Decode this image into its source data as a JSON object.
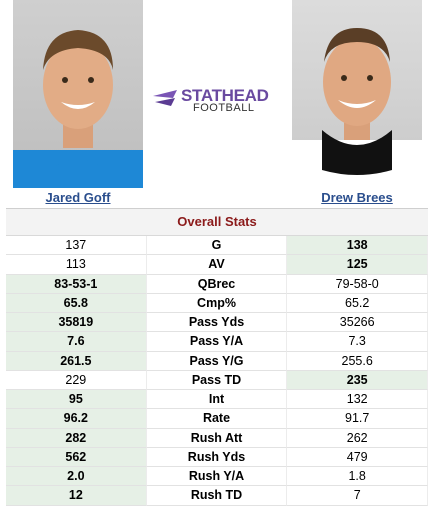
{
  "player1": {
    "name": "Jared Goff"
  },
  "player2": {
    "name": "Drew Brees"
  },
  "logo": {
    "line1": "STATHEAD",
    "line2": "FOOTBALL"
  },
  "section_title": "Overall Stats",
  "rows": [
    {
      "label": "G",
      "p1": "137",
      "p2": "138",
      "winner": "p2"
    },
    {
      "label": "AV",
      "p1": "113",
      "p2": "125",
      "winner": "p2"
    },
    {
      "label": "QBrec",
      "p1": "83-53-1",
      "p2": "79-58-0",
      "winner": "p1"
    },
    {
      "label": "Cmp%",
      "p1": "65.8",
      "p2": "65.2",
      "winner": "p1"
    },
    {
      "label": "Pass Yds",
      "p1": "35819",
      "p2": "35266",
      "winner": "p1"
    },
    {
      "label": "Pass Y/A",
      "p1": "7.6",
      "p2": "7.3",
      "winner": "p1"
    },
    {
      "label": "Pass Y/G",
      "p1": "261.5",
      "p2": "255.6",
      "winner": "p1"
    },
    {
      "label": "Pass TD",
      "p1": "229",
      "p2": "235",
      "winner": "p2"
    },
    {
      "label": "Int",
      "p1": "95",
      "p2": "132",
      "winner": "p1"
    },
    {
      "label": "Rate",
      "p1": "96.2",
      "p2": "91.7",
      "winner": "p1"
    },
    {
      "label": "Rush Att",
      "p1": "282",
      "p2": "262",
      "winner": "p1"
    },
    {
      "label": "Rush Yds",
      "p1": "562",
      "p2": "479",
      "winner": "p1"
    },
    {
      "label": "Rush Y/A",
      "p1": "2.0",
      "p2": "1.8",
      "winner": "p1"
    },
    {
      "label": "Rush TD",
      "p1": "12",
      "p2": "7",
      "winner": "p1"
    }
  ],
  "colors": {
    "win_bg": "#e6f0e6",
    "title_color": "#8b1a1a",
    "link_color": "#2a4e8d"
  }
}
